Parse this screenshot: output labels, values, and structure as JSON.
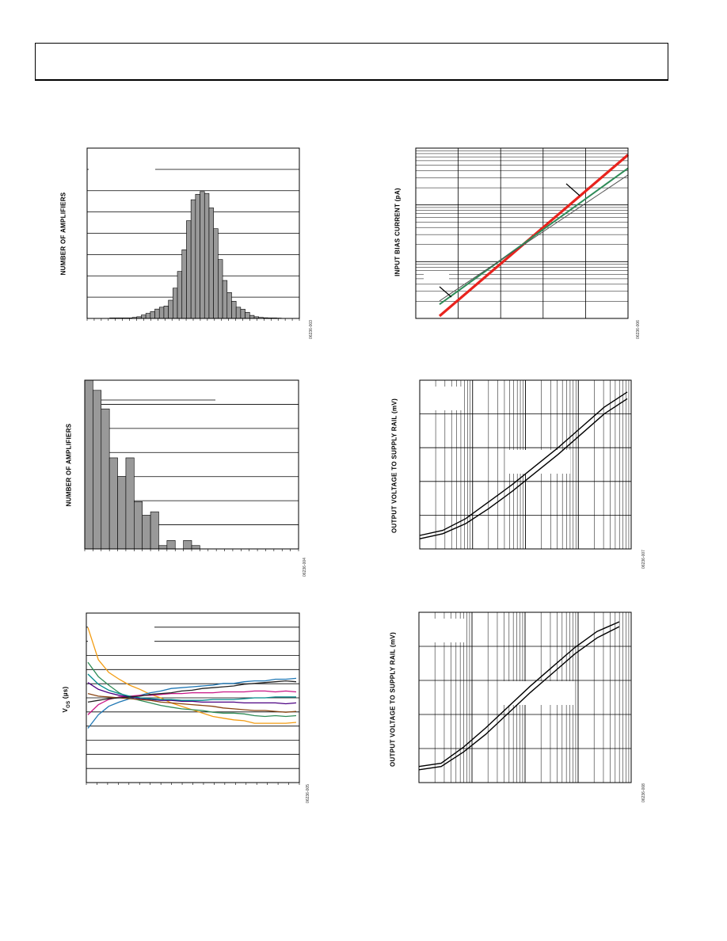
{
  "page": {
    "header": {}
  },
  "colors": {
    "bar_fill": "#999999",
    "red_trace": "#e8231d",
    "green_trace": "#2e8b57",
    "orange_trace": "#f39c12"
  },
  "chart_data": [
    {
      "id": "fig3",
      "type": "bar",
      "ylabel": "NUMBER OF AMPLIFIERS",
      "figure_code": "06236-003",
      "grid": true,
      "values": [
        0,
        0,
        0,
        0,
        0,
        0.3,
        0.3,
        0.3,
        0.3,
        0.3,
        0.6,
        1,
        2,
        3,
        4,
        5.5,
        6.6,
        7.3,
        10.7,
        17.8,
        27.6,
        40.3,
        57.4,
        69.7,
        72.9,
        74.5,
        73.4,
        64.9,
        52.7,
        34.6,
        22.3,
        15.2,
        10.1,
        6.6,
        5.4,
        3.6,
        1.8,
        1,
        0.6,
        0.4,
        0.3,
        0.3,
        0.2,
        0,
        0,
        0,
        0
      ],
      "ylim": [
        0,
        100
      ]
    },
    {
      "id": "fig4",
      "type": "bar",
      "ylabel": "NUMBER OF AMPLIFIERS",
      "figure_code": "06236-004",
      "grid": true,
      "values": [
        100,
        94,
        83,
        54,
        43,
        54,
        28,
        20,
        22,
        2,
        5,
        0,
        5,
        2,
        0,
        0,
        0,
        0,
        0,
        0,
        0,
        0,
        0,
        0,
        0,
        0
      ],
      "ylim": [
        0,
        100
      ]
    },
    {
      "id": "fig5",
      "type": "line",
      "ylabel": "V",
      "ylabel_sub": "OS",
      "ylabel_unit": " (µs)",
      "figure_code": "06236-005",
      "grid": true,
      "ylim": [
        -1,
        1
      ],
      "series": [
        {
          "color": "#f39c12",
          "values": [
            0.83,
            0.45,
            0.3,
            0.22,
            0.15,
            0.1,
            0.04,
            0.0,
            -0.06,
            -0.1,
            -0.14,
            -0.18,
            -0.22,
            -0.24,
            -0.26,
            -0.27,
            -0.3,
            -0.3,
            -0.3,
            -0.3,
            -0.29
          ]
        },
        {
          "color": "#2e8b57",
          "values": [
            0.42,
            0.25,
            0.15,
            0.06,
            0.0,
            -0.03,
            -0.06,
            -0.09,
            -0.11,
            -0.13,
            -0.14,
            -0.15,
            -0.17,
            -0.18,
            -0.18,
            -0.19,
            -0.21,
            -0.22,
            -0.21,
            -0.22,
            -0.21
          ]
        },
        {
          "color": "#1f77b4",
          "values": [
            -0.36,
            -0.2,
            -0.1,
            -0.05,
            -0.01,
            0.03,
            0.06,
            0.08,
            0.11,
            0.12,
            0.13,
            0.14,
            0.15,
            0.17,
            0.17,
            0.19,
            0.2,
            0.2,
            0.22,
            0.22,
            0.23
          ]
        },
        {
          "color": "#c71585",
          "values": [
            -0.2,
            -0.08,
            -0.02,
            0.01,
            0.02,
            0.03,
            0.03,
            0.04,
            0.05,
            0.05,
            0.06,
            0.06,
            0.06,
            0.07,
            0.07,
            0.07,
            0.08,
            0.08,
            0.07,
            0.08,
            0.07
          ]
        },
        {
          "color": "#4b0082",
          "values": [
            0.18,
            0.1,
            0.06,
            0.03,
            0.01,
            -0.01,
            -0.02,
            -0.03,
            -0.03,
            -0.04,
            -0.04,
            -0.05,
            -0.05,
            -0.05,
            -0.05,
            -0.06,
            -0.06,
            -0.06,
            -0.06,
            -0.07,
            -0.06
          ]
        },
        {
          "color": "#8b4513",
          "values": [
            0.05,
            0.02,
            0.01,
            0.0,
            -0.01,
            -0.02,
            -0.03,
            -0.05,
            -0.06,
            -0.07,
            -0.08,
            -0.09,
            -0.1,
            -0.12,
            -0.13,
            -0.14,
            -0.15,
            -0.15,
            -0.16,
            -0.17,
            -0.16
          ]
        },
        {
          "color": "#008b8b",
          "values": [
            0.28,
            0.16,
            0.09,
            0.05,
            0.02,
            0.0,
            -0.01,
            -0.02,
            -0.02,
            -0.03,
            -0.03,
            -0.03,
            -0.02,
            -0.02,
            -0.02,
            -0.01,
            0.0,
            0.0,
            0.01,
            0.01,
            0.01
          ]
        },
        {
          "color": "#222222",
          "values": [
            -0.05,
            -0.03,
            -0.01,
            0.0,
            0.01,
            0.02,
            0.04,
            0.05,
            0.06,
            0.08,
            0.09,
            0.11,
            0.12,
            0.13,
            0.14,
            0.16,
            0.17,
            0.18,
            0.19,
            0.2,
            0.19
          ]
        }
      ]
    },
    {
      "id": "fig6",
      "type": "line",
      "ylabel": "INPUT BIAS CURRENT (pA)",
      "figure_code": "06236-006",
      "grid": true,
      "yscale": "log",
      "series": [
        {
          "color": "#e8231d",
          "values": [
            0.0,
            0.96
          ]
        },
        {
          "color": "#2e8b57",
          "values": [
            0.07,
            0.88
          ]
        },
        {
          "color": "#555555",
          "values": [
            0.09,
            0.84
          ]
        }
      ]
    },
    {
      "id": "fig7",
      "type": "line",
      "ylabel": "OUTPUT VOLTAGE TO SUPPLY RAIL (mV)",
      "figure_code": "06236-007",
      "grid": true,
      "xscale": "log",
      "series": [
        {
          "color": "#000000",
          "values": [
            0.08,
            0.11,
            0.18,
            0.28,
            0.38,
            0.49,
            0.6,
            0.72,
            0.84,
            0.93
          ]
        },
        {
          "color": "#000000",
          "values": [
            0.06,
            0.09,
            0.15,
            0.24,
            0.34,
            0.45,
            0.56,
            0.68,
            0.8,
            0.89
          ]
        }
      ]
    },
    {
      "id": "fig8",
      "type": "line",
      "ylabel": "OUTPUT VOLTAGE TO SUPPLY RAIL (mV)",
      "figure_code": "06236-008",
      "grid": true,
      "xscale": "log",
      "series": [
        {
          "color": "#000000",
          "values": [
            0.1,
            0.12,
            0.22,
            0.34,
            0.47,
            0.6,
            0.72,
            0.84,
            0.94,
            1.0
          ]
        },
        {
          "color": "#000000",
          "values": [
            0.08,
            0.1,
            0.19,
            0.3,
            0.43,
            0.56,
            0.68,
            0.8,
            0.9,
            0.97
          ]
        }
      ]
    }
  ]
}
